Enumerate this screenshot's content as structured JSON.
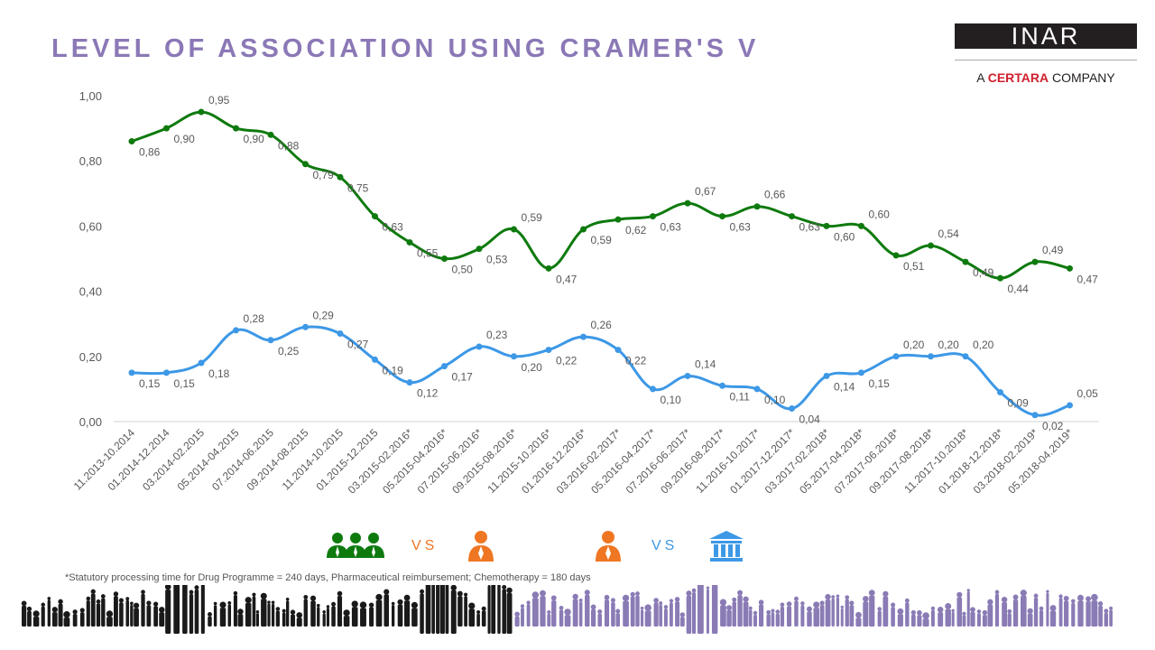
{
  "slide": {
    "title": "LEVEL OF ASSOCIATION USING CRAMER'S V",
    "footnote": "*Statutory processing time for Drug Programme = 240 days, Pharmaceutical reimbursement; Chemotherapy = 180 days"
  },
  "logo": {
    "wordmark": "INAR",
    "prefix": "A",
    "brand": "CERTARA",
    "suffix": "COMPANY"
  },
  "legend": {
    "green_pair": {
      "left_icon": "group-of-people-icon",
      "vs": "VS",
      "right_icon": "person-icon"
    },
    "blue_pair": {
      "left_icon": "person-icon",
      "vs": "VS",
      "right_icon": "government-building-icon"
    }
  },
  "colors": {
    "title": "#8b78b6",
    "green_series": "#0e7a0e",
    "blue_series": "#3d98e6",
    "orange_icon": "#ef7622",
    "brand_red": "#d0202e",
    "crowd_dark": "#1a1a1a",
    "crowd_purple": "#8a7bb5"
  },
  "chart_data": {
    "type": "line",
    "smooth": true,
    "categories": [
      "11.2013-10.2014",
      "01.2014-12.2014",
      "03.2014-02.2015",
      "05.2014-04.2015",
      "07.2014-06.2015",
      "09.2014-08.2015",
      "11.2014-10.2015",
      "01.2015-12.2015",
      "03.2015-02.2016*",
      "05.2015-04.2016*",
      "07.2015-06.2016*",
      "09.2015-08.2016*",
      "11.2015-10.2016*",
      "01.2016-12.2016*",
      "03.2016-02.2017*",
      "05.2016-04.2017*",
      "07.2016-06.2017*",
      "09.2016-08.2017*",
      "11.2016-10.2017*",
      "01.2017-12.2017*",
      "03.2017-02.2018*",
      "05.2017-04.2018*",
      "07.2017-06.2018*",
      "09.2017-08.2018*",
      "11.2017-10.2018*",
      "01.2018-12.2018*",
      "03.2018-02.2019*",
      "05.2018-04.2019*"
    ],
    "yticks": [
      "0,00",
      "0,20",
      "0,40",
      "0,60",
      "0,80",
      "1,00"
    ],
    "ylim": [
      0,
      1
    ],
    "grid": false,
    "series": [
      {
        "color": "#0e7a0e",
        "values": [
          0.86,
          0.9,
          0.95,
          0.9,
          0.88,
          0.79,
          0.75,
          0.63,
          0.55,
          0.5,
          0.53,
          0.59,
          0.47,
          0.59,
          0.62,
          0.63,
          0.67,
          0.63,
          0.66,
          0.63,
          0.6,
          0.6,
          0.51,
          0.54,
          0.49,
          0.44,
          0.49,
          0.47
        ],
        "labels": [
          "0,86",
          "0,90",
          "0,95",
          "0,90",
          "0,88",
          "0,79",
          "0,75",
          "0,63",
          "0,55",
          "0,50",
          "0,53",
          "0,59",
          "0,47",
          "0,59",
          "0,62",
          "0,63",
          "0,67",
          "0,63",
          "0,66",
          "0,63",
          "0,60",
          "0,60",
          "0,51",
          "0,54",
          "0,49",
          "0,44",
          "0,49",
          "0,47"
        ]
      },
      {
        "color": "#3d98e6",
        "values": [
          0.15,
          0.15,
          0.18,
          0.28,
          0.25,
          0.29,
          0.27,
          0.19,
          0.12,
          0.17,
          0.23,
          0.2,
          0.22,
          0.26,
          0.22,
          0.1,
          0.14,
          0.11,
          0.1,
          0.04,
          0.14,
          0.15,
          0.2,
          0.2,
          0.2,
          0.09,
          0.02,
          0.05
        ],
        "labels": [
          "0,15",
          "0,15",
          "0,18",
          "0,28",
          "0,25",
          "0,29",
          "0,27",
          "0,19",
          "0,12",
          "0,17",
          "0,23",
          "0,20",
          "0,22",
          "0,26",
          "0,22",
          "0,10",
          "0,14",
          "0,11",
          "0,10",
          "0,04",
          "0,14",
          "0,15",
          "0,20",
          "0,20",
          "0,20",
          "0,09",
          "0,02",
          "0,05"
        ]
      }
    ]
  }
}
